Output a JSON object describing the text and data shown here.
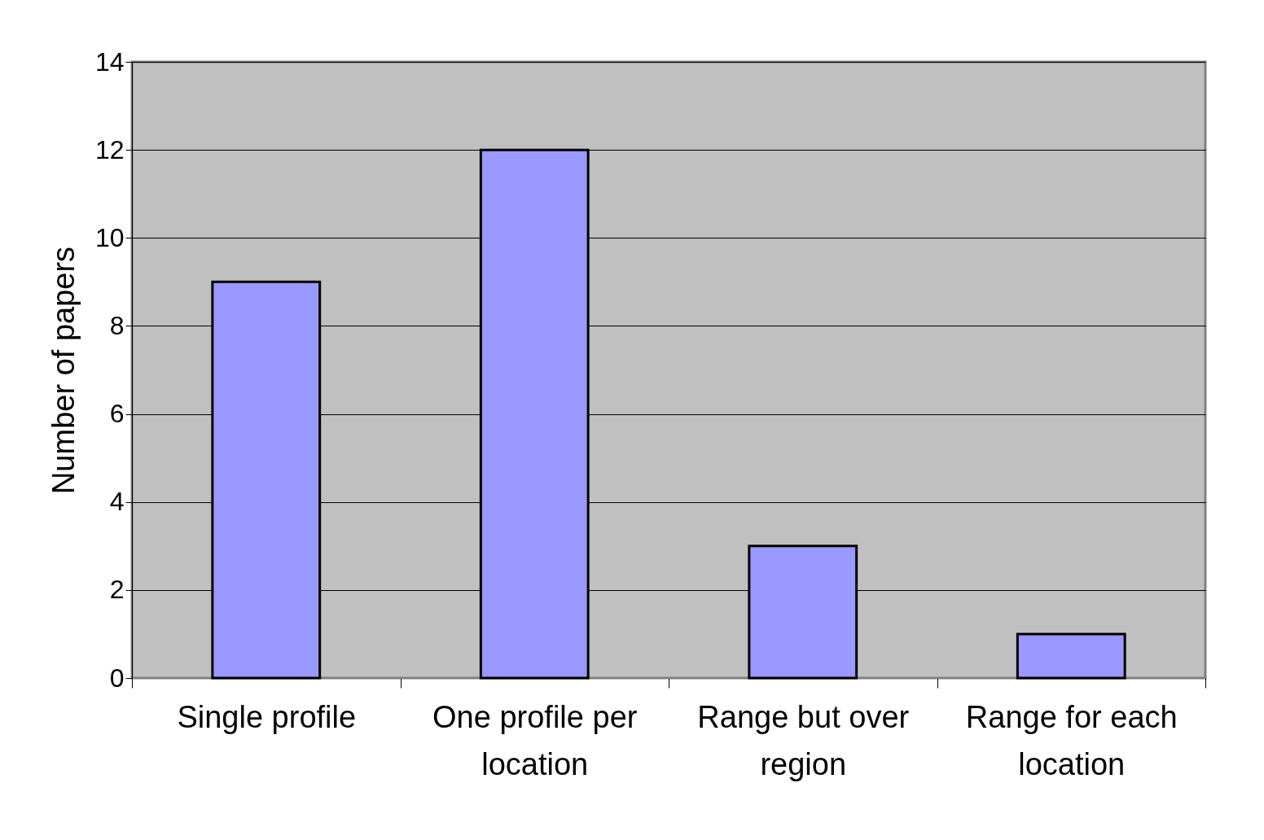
{
  "chart_data": {
    "type": "bar",
    "ylabel": "Number of papers",
    "categories": [
      "Single profile",
      "One profile per location",
      "Range but over region",
      "Range for each location"
    ],
    "values": [
      9,
      12,
      3,
      1
    ],
    "color": "#9999ff",
    "ylim": [
      0,
      14
    ],
    "yticks": [
      0,
      2,
      4,
      6,
      8,
      10,
      12,
      14
    ],
    "grid": "y"
  }
}
